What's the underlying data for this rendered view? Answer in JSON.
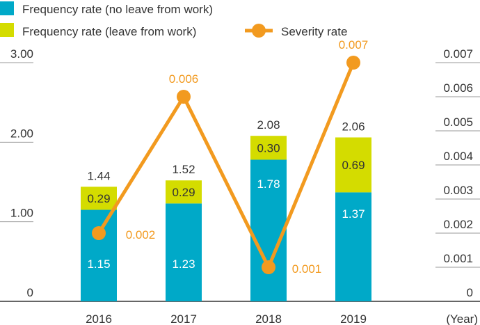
{
  "chart_data": {
    "type": "bar",
    "stacked": true,
    "categories": [
      "2016",
      "2017",
      "2018",
      "2019"
    ],
    "x_unit_label": "(Year)",
    "series": [
      {
        "name": "Frequency rate (no leave from work)",
        "values": [
          1.15,
          1.23,
          1.78,
          1.37
        ],
        "labels": [
          "1.15",
          "1.23",
          "1.78",
          "1.37"
        ],
        "color": "#00a9c8"
      },
      {
        "name": "Frequency rate (leave from work)",
        "values": [
          0.29,
          0.29,
          0.3,
          0.69
        ],
        "labels": [
          "0.29",
          "0.29",
          "0.30",
          "0.69"
        ],
        "color": "#d4dc00"
      }
    ],
    "totals": [
      "1.44",
      "1.52",
      "2.08",
      "2.06"
    ],
    "line_series": {
      "name": "Severity rate",
      "values": [
        0.002,
        0.006,
        0.001,
        0.007
      ],
      "labels": [
        "0.002",
        "0.006",
        "0.001",
        "0.007"
      ],
      "color": "#f29a1f",
      "axis": "right"
    },
    "y_left": {
      "ylim": [
        0,
        3
      ],
      "ticks": [
        "0",
        "1.00",
        "2.00",
        "3.00"
      ],
      "tick_values": [
        0,
        1,
        2,
        3
      ]
    },
    "y_right": {
      "ylim": [
        0,
        0.007
      ],
      "ticks": [
        "0",
        "0.001",
        "0.002",
        "0.003",
        "0.004",
        "0.005",
        "0.006",
        "0.007"
      ],
      "tick_values": [
        0,
        0.001,
        0.002,
        0.003,
        0.004,
        0.005,
        0.006,
        0.007
      ]
    },
    "legend_placement": "top-left",
    "grid": false
  }
}
